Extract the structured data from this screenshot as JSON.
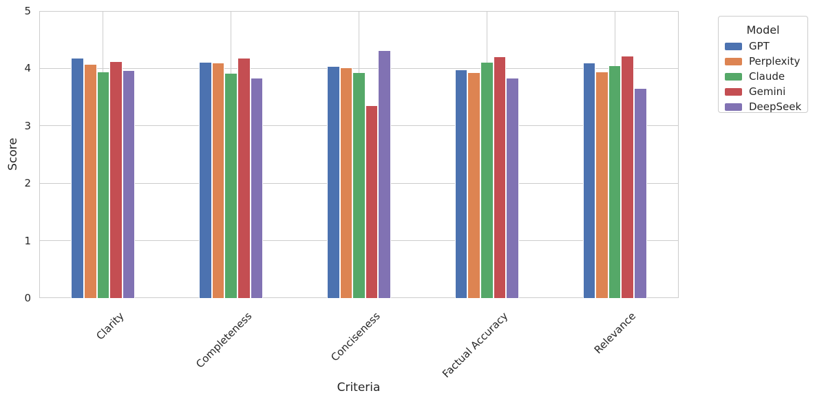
{
  "chart_data": {
    "type": "bar",
    "title": "",
    "xlabel": "Criteria",
    "ylabel": "Score",
    "ylim": [
      0,
      5
    ],
    "yticks": [
      0,
      1,
      2,
      3,
      4,
      5
    ],
    "grid": true,
    "background": "#ffffff",
    "grid_color": "#cccccc",
    "text_color": "#262626",
    "categories": [
      "Clarity",
      "Completeness",
      "Conciseness",
      "Factual Accuracy",
      "Relevance"
    ],
    "series": [
      {
        "name": "GPT",
        "color": "#4C72B0",
        "values": [
          4.17,
          4.1,
          4.03,
          3.97,
          4.09
        ]
      },
      {
        "name": "Perplexity",
        "color": "#DD8452",
        "values": [
          4.06,
          4.09,
          4.0,
          3.92,
          3.93
        ]
      },
      {
        "name": "Claude",
        "color": "#55A868",
        "values": [
          3.93,
          3.91,
          3.92,
          4.1,
          4.04
        ]
      },
      {
        "name": "Gemini",
        "color": "#C44E52",
        "values": [
          4.11,
          4.17,
          3.34,
          4.2,
          4.21
        ]
      },
      {
        "name": "DeepSeek",
        "color": "#8172B3",
        "values": [
          3.96,
          3.82,
          4.3,
          3.82,
          3.64
        ]
      }
    ],
    "legend": {
      "title": "Model",
      "position": "outside-upper-right"
    }
  }
}
